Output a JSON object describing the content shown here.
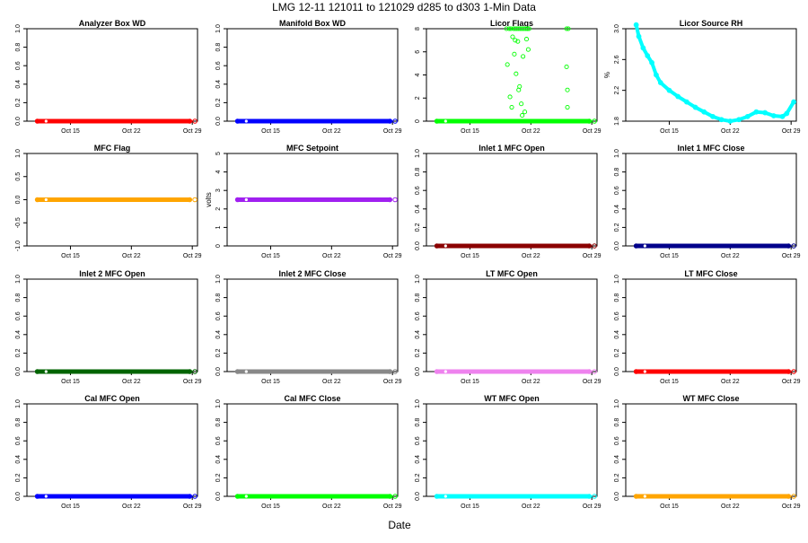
{
  "figure": {
    "title": "LMG   12-11     121011 to 121029    d285 to d303   1-Min Data",
    "xlabel": "Date"
  },
  "chart_data": [
    {
      "type": "scatter",
      "title": "Analyzer Box WD",
      "ylabel": "",
      "ylim": [
        0,
        1
      ],
      "yticks": [
        "0.0",
        "0.2",
        "0.4",
        "0.6",
        "0.8",
        "1.0"
      ],
      "xticks": [
        "Oct 15",
        "Oct 22",
        "Oct 29"
      ],
      "color": "#ff0000",
      "pattern": "flat",
      "value": 0
    },
    {
      "type": "scatter",
      "title": "Manifold Box WD",
      "ylabel": "",
      "ylim": [
        0,
        1
      ],
      "yticks": [
        "0.0",
        "0.2",
        "0.4",
        "0.6",
        "0.8",
        "1.0"
      ],
      "xticks": [
        "Oct 15",
        "Oct 22",
        "Oct 29"
      ],
      "color": "#0000ff",
      "pattern": "flat",
      "value": 0
    },
    {
      "type": "scatter",
      "title": "Licor Flags",
      "ylabel": "",
      "ylim": [
        0,
        8
      ],
      "yticks": [
        "0",
        "2",
        "4",
        "6",
        "8"
      ],
      "xticks": [
        "Oct 15",
        "Oct 22",
        "Oct 29"
      ],
      "color": "#00ff00",
      "pattern": "flags",
      "value": 0,
      "flag_points": [
        [
          19.2,
          8
        ],
        [
          19.5,
          8
        ],
        [
          19.7,
          8
        ],
        [
          20.0,
          8
        ],
        [
          20.2,
          8
        ],
        [
          20.4,
          8
        ],
        [
          20.6,
          8
        ],
        [
          20.8,
          8
        ],
        [
          21.0,
          8
        ],
        [
          21.2,
          8
        ],
        [
          21.4,
          8
        ],
        [
          21.6,
          8
        ],
        [
          21.8,
          8
        ],
        [
          26.1,
          8
        ],
        [
          26.3,
          8
        ],
        [
          19.3,
          4.9
        ],
        [
          19.6,
          2.1
        ],
        [
          19.9,
          7.3
        ],
        [
          20.1,
          5.8
        ],
        [
          20.3,
          4.1
        ],
        [
          20.5,
          6.9
        ],
        [
          20.7,
          3.0
        ],
        [
          20.9,
          1.5
        ],
        [
          21.1,
          5.6
        ],
        [
          21.3,
          0.8
        ],
        [
          21.5,
          7.1
        ],
        [
          21.7,
          6.2
        ],
        [
          19.8,
          1.2
        ],
        [
          20.6,
          2.7
        ],
        [
          21.0,
          0.5
        ],
        [
          26.1,
          4.7
        ],
        [
          26.2,
          2.7
        ],
        [
          26.2,
          1.2
        ],
        [
          20.2,
          7.0
        ],
        [
          21.6,
          8
        ]
      ]
    },
    {
      "type": "line",
      "title": "Licor Source RH",
      "ylabel": "%",
      "ylim": [
        1.8,
        3.0
      ],
      "yticks": [
        "1.8",
        "2.2",
        "2.6",
        "3.0"
      ],
      "xticks": [
        "Oct 15",
        "Oct 22",
        "Oct 29"
      ],
      "color": "#00ffff",
      "pattern": "curve",
      "x": [
        11.2,
        11.5,
        12,
        12.5,
        13,
        13.5,
        14,
        15,
        16,
        17,
        18,
        19,
        20,
        21,
        22,
        23,
        24,
        25,
        26,
        27,
        28,
        28.5,
        29.3
      ],
      "y": [
        3.05,
        2.9,
        2.75,
        2.65,
        2.56,
        2.4,
        2.3,
        2.2,
        2.12,
        2.05,
        1.98,
        1.92,
        1.86,
        1.82,
        1.8,
        1.82,
        1.86,
        1.92,
        1.91,
        1.87,
        1.86,
        1.9,
        2.05
      ]
    },
    {
      "type": "scatter",
      "title": "MFC Flag",
      "ylabel": "",
      "ylim": [
        -1,
        1
      ],
      "yticks": [
        "-1.0",
        "-0.5",
        "0.0",
        "0.5",
        "1.0"
      ],
      "xticks": [
        "Oct 15",
        "Oct 22",
        "Oct 29"
      ],
      "color": "#ffa500",
      "pattern": "flat",
      "value": 0
    },
    {
      "type": "scatter",
      "title": "MFC Setpoint",
      "ylabel": "volts",
      "ylim": [
        0,
        5
      ],
      "yticks": [
        "0",
        "1",
        "2",
        "3",
        "4",
        "5"
      ],
      "xticks": [
        "Oct 15",
        "Oct 22",
        "Oct 29"
      ],
      "color": "#a020f0",
      "pattern": "flat",
      "value": 2.5
    },
    {
      "type": "scatter",
      "title": "Inlet 1 MFC Open",
      "ylabel": "",
      "ylim": [
        0,
        1
      ],
      "yticks": [
        "0.0",
        "0.2",
        "0.4",
        "0.6",
        "0.8",
        "1.0"
      ],
      "xticks": [
        "Oct 15",
        "Oct 22",
        "Oct 29"
      ],
      "color": "#8b0000",
      "pattern": "flat",
      "value": 0
    },
    {
      "type": "scatter",
      "title": "Inlet 1 MFC Close",
      "ylabel": "",
      "ylim": [
        0,
        1
      ],
      "yticks": [
        "0.0",
        "0.2",
        "0.4",
        "0.6",
        "0.8",
        "1.0"
      ],
      "xticks": [
        "Oct 15",
        "Oct 22",
        "Oct 29"
      ],
      "color": "#00008b",
      "pattern": "flat",
      "value": 0
    },
    {
      "type": "scatter",
      "title": "Inlet 2 MFC Open",
      "ylabel": "",
      "ylim": [
        0,
        1
      ],
      "yticks": [
        "0.0",
        "0.2",
        "0.4",
        "0.6",
        "0.8",
        "1.0"
      ],
      "xticks": [
        "Oct 15",
        "Oct 22",
        "Oct 29"
      ],
      "color": "#006400",
      "pattern": "flat",
      "value": 0
    },
    {
      "type": "scatter",
      "title": "Inlet 2 MFC Close",
      "ylabel": "",
      "ylim": [
        0,
        1
      ],
      "yticks": [
        "0.0",
        "0.2",
        "0.4",
        "0.6",
        "0.8",
        "1.0"
      ],
      "xticks": [
        "Oct 15",
        "Oct 22",
        "Oct 29"
      ],
      "color": "#888888",
      "pattern": "flat",
      "value": 0
    },
    {
      "type": "scatter",
      "title": "LT MFC Open",
      "ylabel": "",
      "ylim": [
        0,
        1
      ],
      "yticks": [
        "0.0",
        "0.2",
        "0.4",
        "0.6",
        "0.8",
        "1.0"
      ],
      "xticks": [
        "Oct 15",
        "Oct 22",
        "Oct 29"
      ],
      "color": "#ee82ee",
      "pattern": "flat",
      "value": 0
    },
    {
      "type": "scatter",
      "title": "LT MFC Close",
      "ylabel": "",
      "ylim": [
        0,
        1
      ],
      "yticks": [
        "0.0",
        "0.2",
        "0.4",
        "0.6",
        "0.8",
        "1.0"
      ],
      "xticks": [
        "Oct 15",
        "Oct 22",
        "Oct 29"
      ],
      "color": "#ff0000",
      "pattern": "flat",
      "value": 0
    },
    {
      "type": "scatter",
      "title": "Cal MFC Open",
      "ylabel": "",
      "ylim": [
        0,
        1
      ],
      "yticks": [
        "0.0",
        "0.2",
        "0.4",
        "0.6",
        "0.8",
        "1.0"
      ],
      "xticks": [
        "Oct 15",
        "Oct 22",
        "Oct 29"
      ],
      "color": "#0000ff",
      "pattern": "flat",
      "value": 0
    },
    {
      "type": "scatter",
      "title": "Cal MFC Close",
      "ylabel": "",
      "ylim": [
        0,
        1
      ],
      "yticks": [
        "0.0",
        "0.2",
        "0.4",
        "0.6",
        "0.8",
        "1.0"
      ],
      "xticks": [
        "Oct 15",
        "Oct 22",
        "Oct 29"
      ],
      "color": "#00ff00",
      "pattern": "flat",
      "value": 0
    },
    {
      "type": "scatter",
      "title": "WT MFC Open",
      "ylabel": "",
      "ylim": [
        0,
        1
      ],
      "yticks": [
        "0.0",
        "0.2",
        "0.4",
        "0.6",
        "0.8",
        "1.0"
      ],
      "xticks": [
        "Oct 15",
        "Oct 22",
        "Oct 29"
      ],
      "color": "#00ffff",
      "pattern": "flat",
      "value": 0
    },
    {
      "type": "scatter",
      "title": "WT MFC Close",
      "ylabel": "",
      "ylim": [
        0,
        1
      ],
      "yticks": [
        "0.0",
        "0.2",
        "0.4",
        "0.6",
        "0.8",
        "1.0"
      ],
      "xticks": [
        "Oct 15",
        "Oct 22",
        "Oct 29"
      ],
      "color": "#ffa500",
      "pattern": "flat",
      "value": 0
    }
  ]
}
